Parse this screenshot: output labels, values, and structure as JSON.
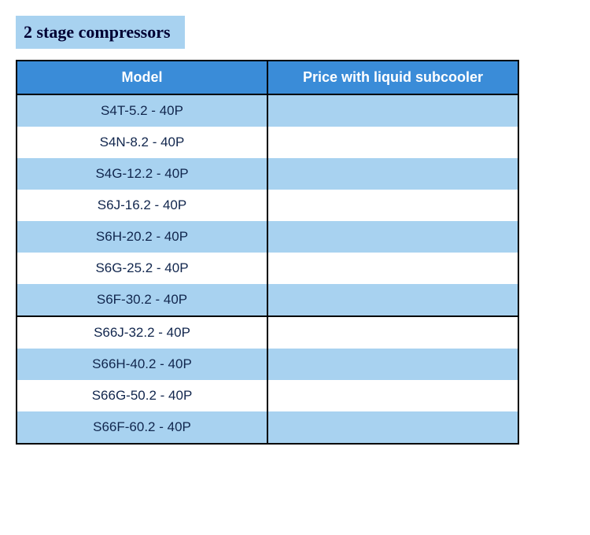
{
  "title": "2 stage compressors",
  "colors": {
    "title_bg": "#a8d2f0",
    "title_text": "#000033",
    "header_bg": "#3a8cd8",
    "header_text": "#ffffff",
    "row_alt_bg": "#a8d2f0",
    "row_bg": "#ffffff",
    "cell_text": "#11264d",
    "border": "#000000"
  },
  "table": {
    "type": "table",
    "columns": [
      "Model",
      "Price with liquid subcooler"
    ],
    "column_widths": [
      "50%",
      "50%"
    ],
    "header_fontsize": 18,
    "cell_fontsize": 17,
    "groups": [
      {
        "rows": [
          [
            "S4T-5.2 - 40P",
            ""
          ],
          [
            "S4N-8.2 - 40P",
            ""
          ],
          [
            "S4G-12.2 - 40P",
            ""
          ],
          [
            "S6J-16.2 - 40P",
            ""
          ],
          [
            "S6H-20.2 - 40P",
            ""
          ],
          [
            "S6G-25.2 - 40P",
            ""
          ],
          [
            "S6F-30.2 - 40P",
            ""
          ]
        ]
      },
      {
        "rows": [
          [
            "S66J-32.2 - 40P",
            ""
          ],
          [
            "S66H-40.2 - 40P",
            ""
          ],
          [
            "S66G-50.2 - 40P",
            ""
          ],
          [
            "S66F-60.2 - 40P",
            ""
          ]
        ]
      }
    ]
  }
}
